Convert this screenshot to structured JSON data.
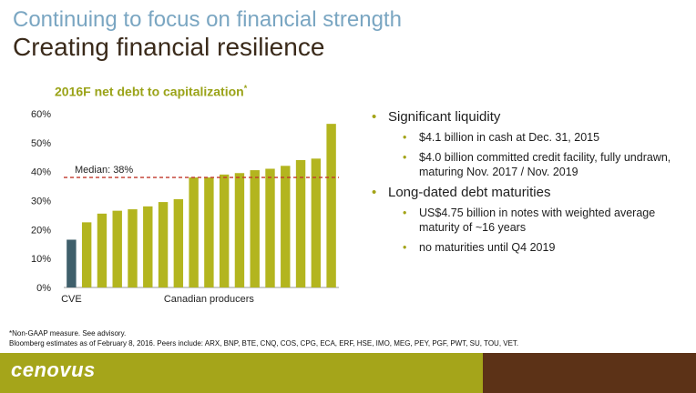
{
  "slide": {
    "supertitle": "Continuing to focus on financial strength",
    "title": "Creating financial resilience",
    "footnote_1": "*Non-GAAP measure. See advisory.",
    "footnote_2": "Bloomberg estimates as of February 8, 2016. Peers include: ARX, BNP, BTE, CNQ, COS, CPG, ECA, ERF, HSE, IMO, MEG, PEY, PGF, PWT, SU, TOU, VET.",
    "logo": "cenovus"
  },
  "bullets": [
    {
      "text": "Significant liquidity",
      "sub": [
        "$4.1 billion in cash at Dec. 31, 2015",
        "$4.0 billion committed credit facility, fully undrawn, maturing Nov. 2017 / Nov. 2019"
      ]
    },
    {
      "text": "Long-dated debt maturities",
      "sub": [
        "US$4.75 billion in notes with weighted average maturity of ~16 years",
        "no maturities until Q4 2019"
      ]
    }
  ],
  "chart_data": {
    "type": "bar",
    "title": "2016F net debt to capitalization",
    "title_marker": "*",
    "categories": [
      "CVE",
      "",
      "",
      "",
      "",
      "",
      "",
      "",
      "",
      "",
      "",
      "",
      "",
      "",
      "",
      "",
      "",
      ""
    ],
    "values": [
      16.5,
      22.5,
      25.5,
      26.5,
      27,
      28,
      29.5,
      30.5,
      38,
      38,
      39,
      39.5,
      40.5,
      41,
      42,
      44,
      44.5,
      56.5
    ],
    "highlight_index": 0,
    "group_label": "Canadian producers",
    "ylim": [
      0,
      60
    ],
    "yticks": [
      "0%",
      "10%",
      "20%",
      "30%",
      "40%",
      "50%",
      "60%"
    ],
    "ytick_values": [
      0,
      10,
      20,
      30,
      40,
      50,
      60
    ],
    "median": {
      "label": "Median: 38%",
      "value": 38
    },
    "colors": {
      "highlight": "#3f5f6b",
      "bar": "#b3b51f",
      "median_line": "#c0392b"
    },
    "grid": false
  }
}
